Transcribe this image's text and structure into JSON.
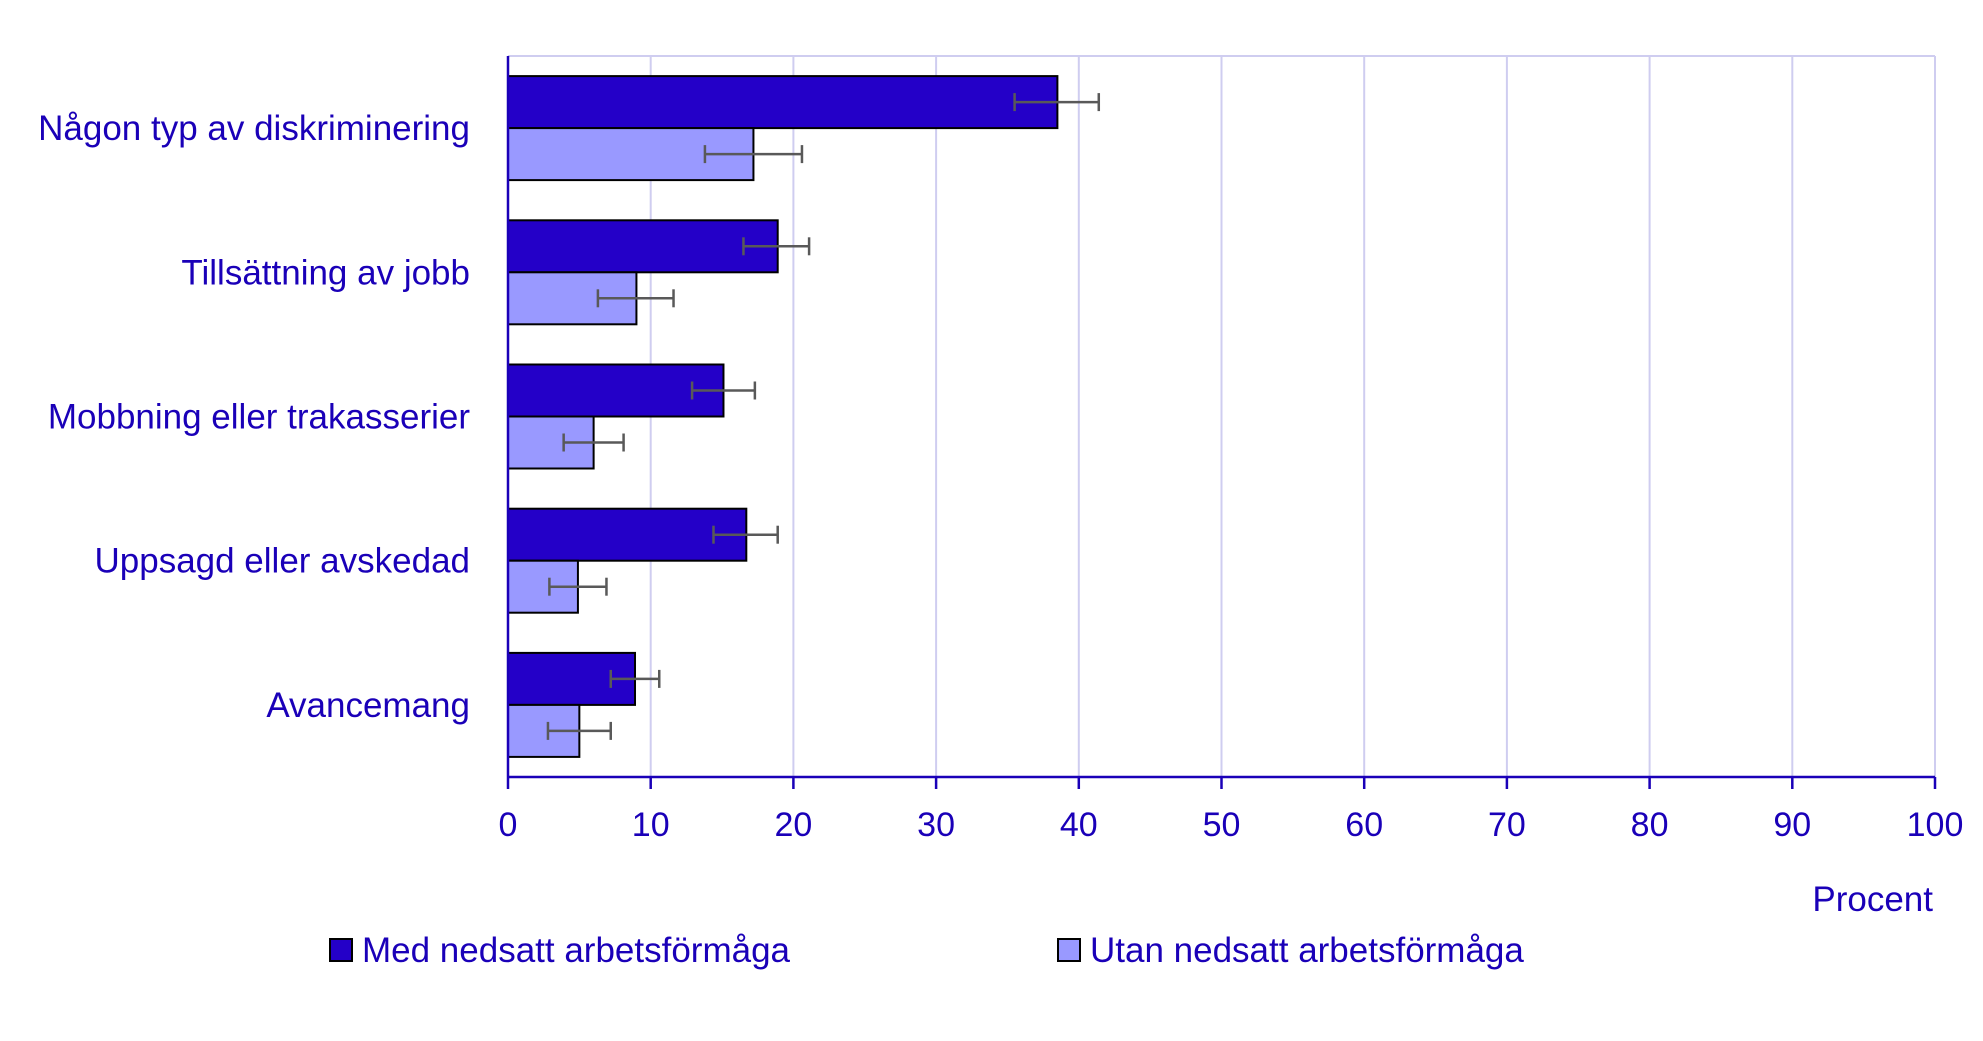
{
  "chart_data": {
    "type": "bar",
    "orientation": "horizontal",
    "categories": [
      "Någon typ av diskriminering",
      "Tillsättning av jobb",
      "Mobbning eller trakasserier",
      "Uppsagd eller avskedad",
      "Avancemang"
    ],
    "series": [
      {
        "name": "Med nedsatt arbetsförmåga",
        "color": "#2400c8",
        "values": [
          38.5,
          18.9,
          15.1,
          16.7,
          8.9
        ],
        "error_low": [
          35.5,
          16.5,
          12.9,
          14.4,
          7.2
        ],
        "error_high": [
          41.4,
          21.1,
          17.3,
          18.9,
          10.6
        ]
      },
      {
        "name": "Utan nedsatt arbetsförmåga",
        "color": "#9999ff",
        "values": [
          17.2,
          9.0,
          6.0,
          4.9,
          5.0
        ],
        "error_low": [
          13.8,
          6.3,
          3.9,
          2.9,
          2.8
        ],
        "error_high": [
          20.6,
          11.6,
          8.1,
          6.9,
          7.2
        ]
      }
    ],
    "xlim": [
      0,
      100
    ],
    "xticks": [
      "0",
      "10",
      "20",
      "30",
      "40",
      "50",
      "60",
      "70",
      "80",
      "90",
      "100"
    ],
    "xlabel": "Procent",
    "ylabel": "",
    "title": "",
    "grid": "vertical",
    "legend_position": "bottom"
  }
}
